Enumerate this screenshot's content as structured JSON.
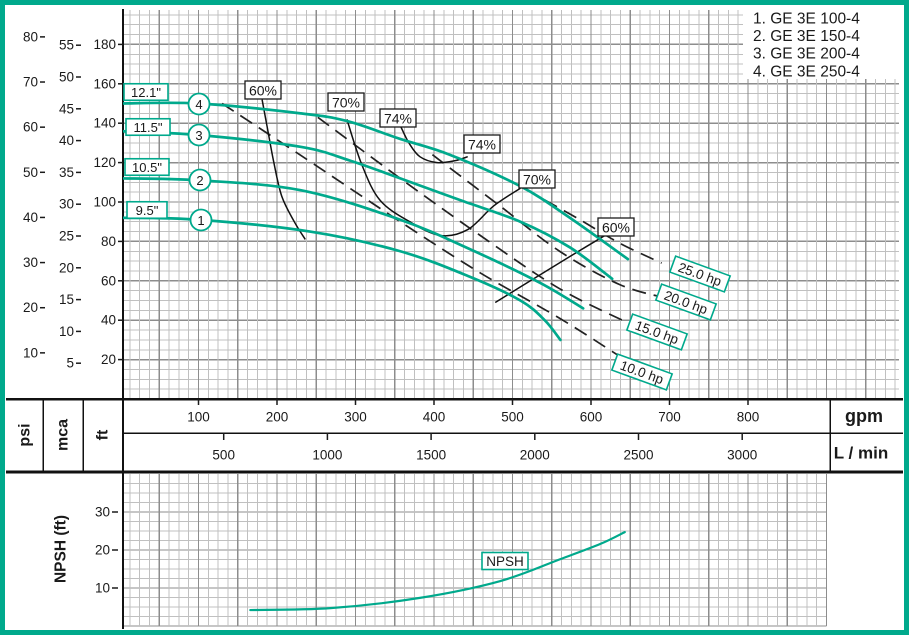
{
  "colors": {
    "accent_teal": "#00a98c",
    "grid_minor": "#c0c0c0",
    "grid_major": "#8d8d8d",
    "frame": "#111111",
    "text": "#1a1a1a"
  },
  "legend": {
    "items": [
      "1. GE 3E 100-4",
      "2. GE 3E 150-4",
      "3. GE 3E 200-4",
      "4. GE 3E 250-4"
    ]
  },
  "chart_data": [
    {
      "type": "line",
      "name": "pump-performance-curves",
      "x_axis": {
        "unit": "gpm",
        "ticks": [
          100,
          200,
          300,
          400,
          500,
          600,
          700,
          800
        ],
        "secondary_unit": "L / min",
        "secondary_ticks": [
          500,
          1000,
          1500,
          2000,
          2500,
          3000
        ]
      },
      "y_axis": {
        "unit_columns": [
          "psi",
          "mca",
          "ft"
        ],
        "psi_ticks": [
          80,
          70,
          60,
          50,
          40,
          30,
          20,
          10
        ],
        "mca_ticks": [
          55,
          50,
          45,
          40,
          35,
          30,
          25,
          20,
          15,
          10,
          5
        ],
        "ft_ticks": [
          180,
          160,
          140,
          120,
          100,
          80,
          60,
          40,
          20
        ]
      },
      "pump_curves": [
        {
          "number": "4",
          "impeller": "12.1\"",
          "model": "GE 3E 250-4",
          "points_gpm_ft": [
            [
              0,
              150
            ],
            [
              100,
              150
            ],
            [
              230,
              145
            ],
            [
              290,
              141
            ],
            [
              357,
              132
            ],
            [
              420,
              124
            ],
            [
              510,
              108
            ],
            [
              573,
              92
            ],
            [
              647,
              71
            ]
          ]
        },
        {
          "number": "3",
          "impeller": "11.5\"",
          "model": "GE 3E 200-4",
          "points_gpm_ft": [
            [
              0,
              136
            ],
            [
              100,
              134
            ],
            [
              230,
              128
            ],
            [
              293,
              121
            ],
            [
              357,
              112
            ],
            [
              433,
              101
            ],
            [
              510,
              90
            ],
            [
              573,
              77
            ],
            [
              627,
              61
            ]
          ]
        },
        {
          "number": "2",
          "impeller": "10.5\"",
          "model": "GE 3E 150-4",
          "points_gpm_ft": [
            [
              0,
              112
            ],
            [
              100,
              111
            ],
            [
              230,
              106
            ],
            [
              357,
              91
            ],
            [
              446,
              76
            ],
            [
              535,
              59
            ],
            [
              590,
              46
            ]
          ]
        },
        {
          "number": "1",
          "impeller": "9.5\"",
          "model": "GE 3E 100-4",
          "points_gpm_ft": [
            [
              0,
              92
            ],
            [
              100,
              91
            ],
            [
              242,
              85
            ],
            [
              357,
              75
            ],
            [
              446,
              62
            ],
            [
              510,
              50
            ],
            [
              541,
              40
            ],
            [
              561,
              30
            ]
          ]
        }
      ],
      "efficiency_curves": [
        {
          "label": "60%",
          "branch": "left",
          "points_gpm_ft": [
            [
              181,
              152
            ],
            [
              188,
              137
            ],
            [
              196,
              120
            ],
            [
              206,
              103
            ],
            [
              222,
              90
            ],
            [
              236,
              81
            ]
          ]
        },
        {
          "label": "70%",
          "branch": "loop",
          "points_gpm_ft": [
            [
              289,
              142
            ],
            [
              308,
              119
            ],
            [
              331,
              101
            ],
            [
              369,
              90
            ],
            [
              408,
              83
            ],
            [
              443,
              86
            ],
            [
              476,
              98
            ],
            [
              510,
              107
            ]
          ]
        },
        {
          "label": "74%",
          "branch": "loop",
          "points_gpm_ft": [
            [
              358,
              138
            ],
            [
              368,
              130
            ],
            [
              382,
              123
            ],
            [
              404,
              120
            ],
            [
              427,
              121
            ],
            [
              443,
              123
            ]
          ]
        },
        {
          "label": "60%",
          "branch": "right",
          "points_gpm_ft": [
            [
              478,
              49
            ],
            [
              535,
              63
            ],
            [
              580,
              74
            ],
            [
              622,
              84
            ]
          ]
        }
      ],
      "efficiency_labels": [
        "60%",
        "70%",
        "74%",
        "74%",
        "70%",
        "60%"
      ],
      "power_curves": [
        {
          "label": "10.0 hp",
          "points_gpm_ft": [
            [
              130,
              150
            ],
            [
              229,
              124
            ],
            [
              357,
              90
            ],
            [
              459,
              64
            ],
            [
              560,
              41
            ],
            [
              643,
              20
            ]
          ]
        },
        {
          "label": "15.0 hp",
          "points_gpm_ft": [
            [
              252,
              143
            ],
            [
              357,
              112
            ],
            [
              459,
              83
            ],
            [
              560,
              56
            ],
            [
              656,
              37
            ]
          ]
        },
        {
          "label": "20.0 hp",
          "points_gpm_ft": [
            [
              398,
              124
            ],
            [
              484,
              98
            ],
            [
              560,
              75
            ],
            [
              637,
              58
            ],
            [
              698,
              51
            ]
          ]
        },
        {
          "label": "25.0 hp",
          "points_gpm_ft": [
            [
              541,
              101
            ],
            [
              586,
              91
            ],
            [
              637,
              79
            ],
            [
              690,
              69
            ]
          ]
        }
      ]
    },
    {
      "type": "line",
      "name": "NPSH",
      "y_label": "NPSH (ft)",
      "y_ticks": [
        30,
        20,
        10
      ],
      "curve_label": "NPSH",
      "points_gpm_ft": [
        [
          166,
          4.2
        ],
        [
          268,
          4.7
        ],
        [
          382,
          7.4
        ],
        [
          484,
          11.8
        ],
        [
          561,
          17.6
        ],
        [
          612,
          21.6
        ],
        [
          643,
          24.7
        ]
      ]
    }
  ]
}
